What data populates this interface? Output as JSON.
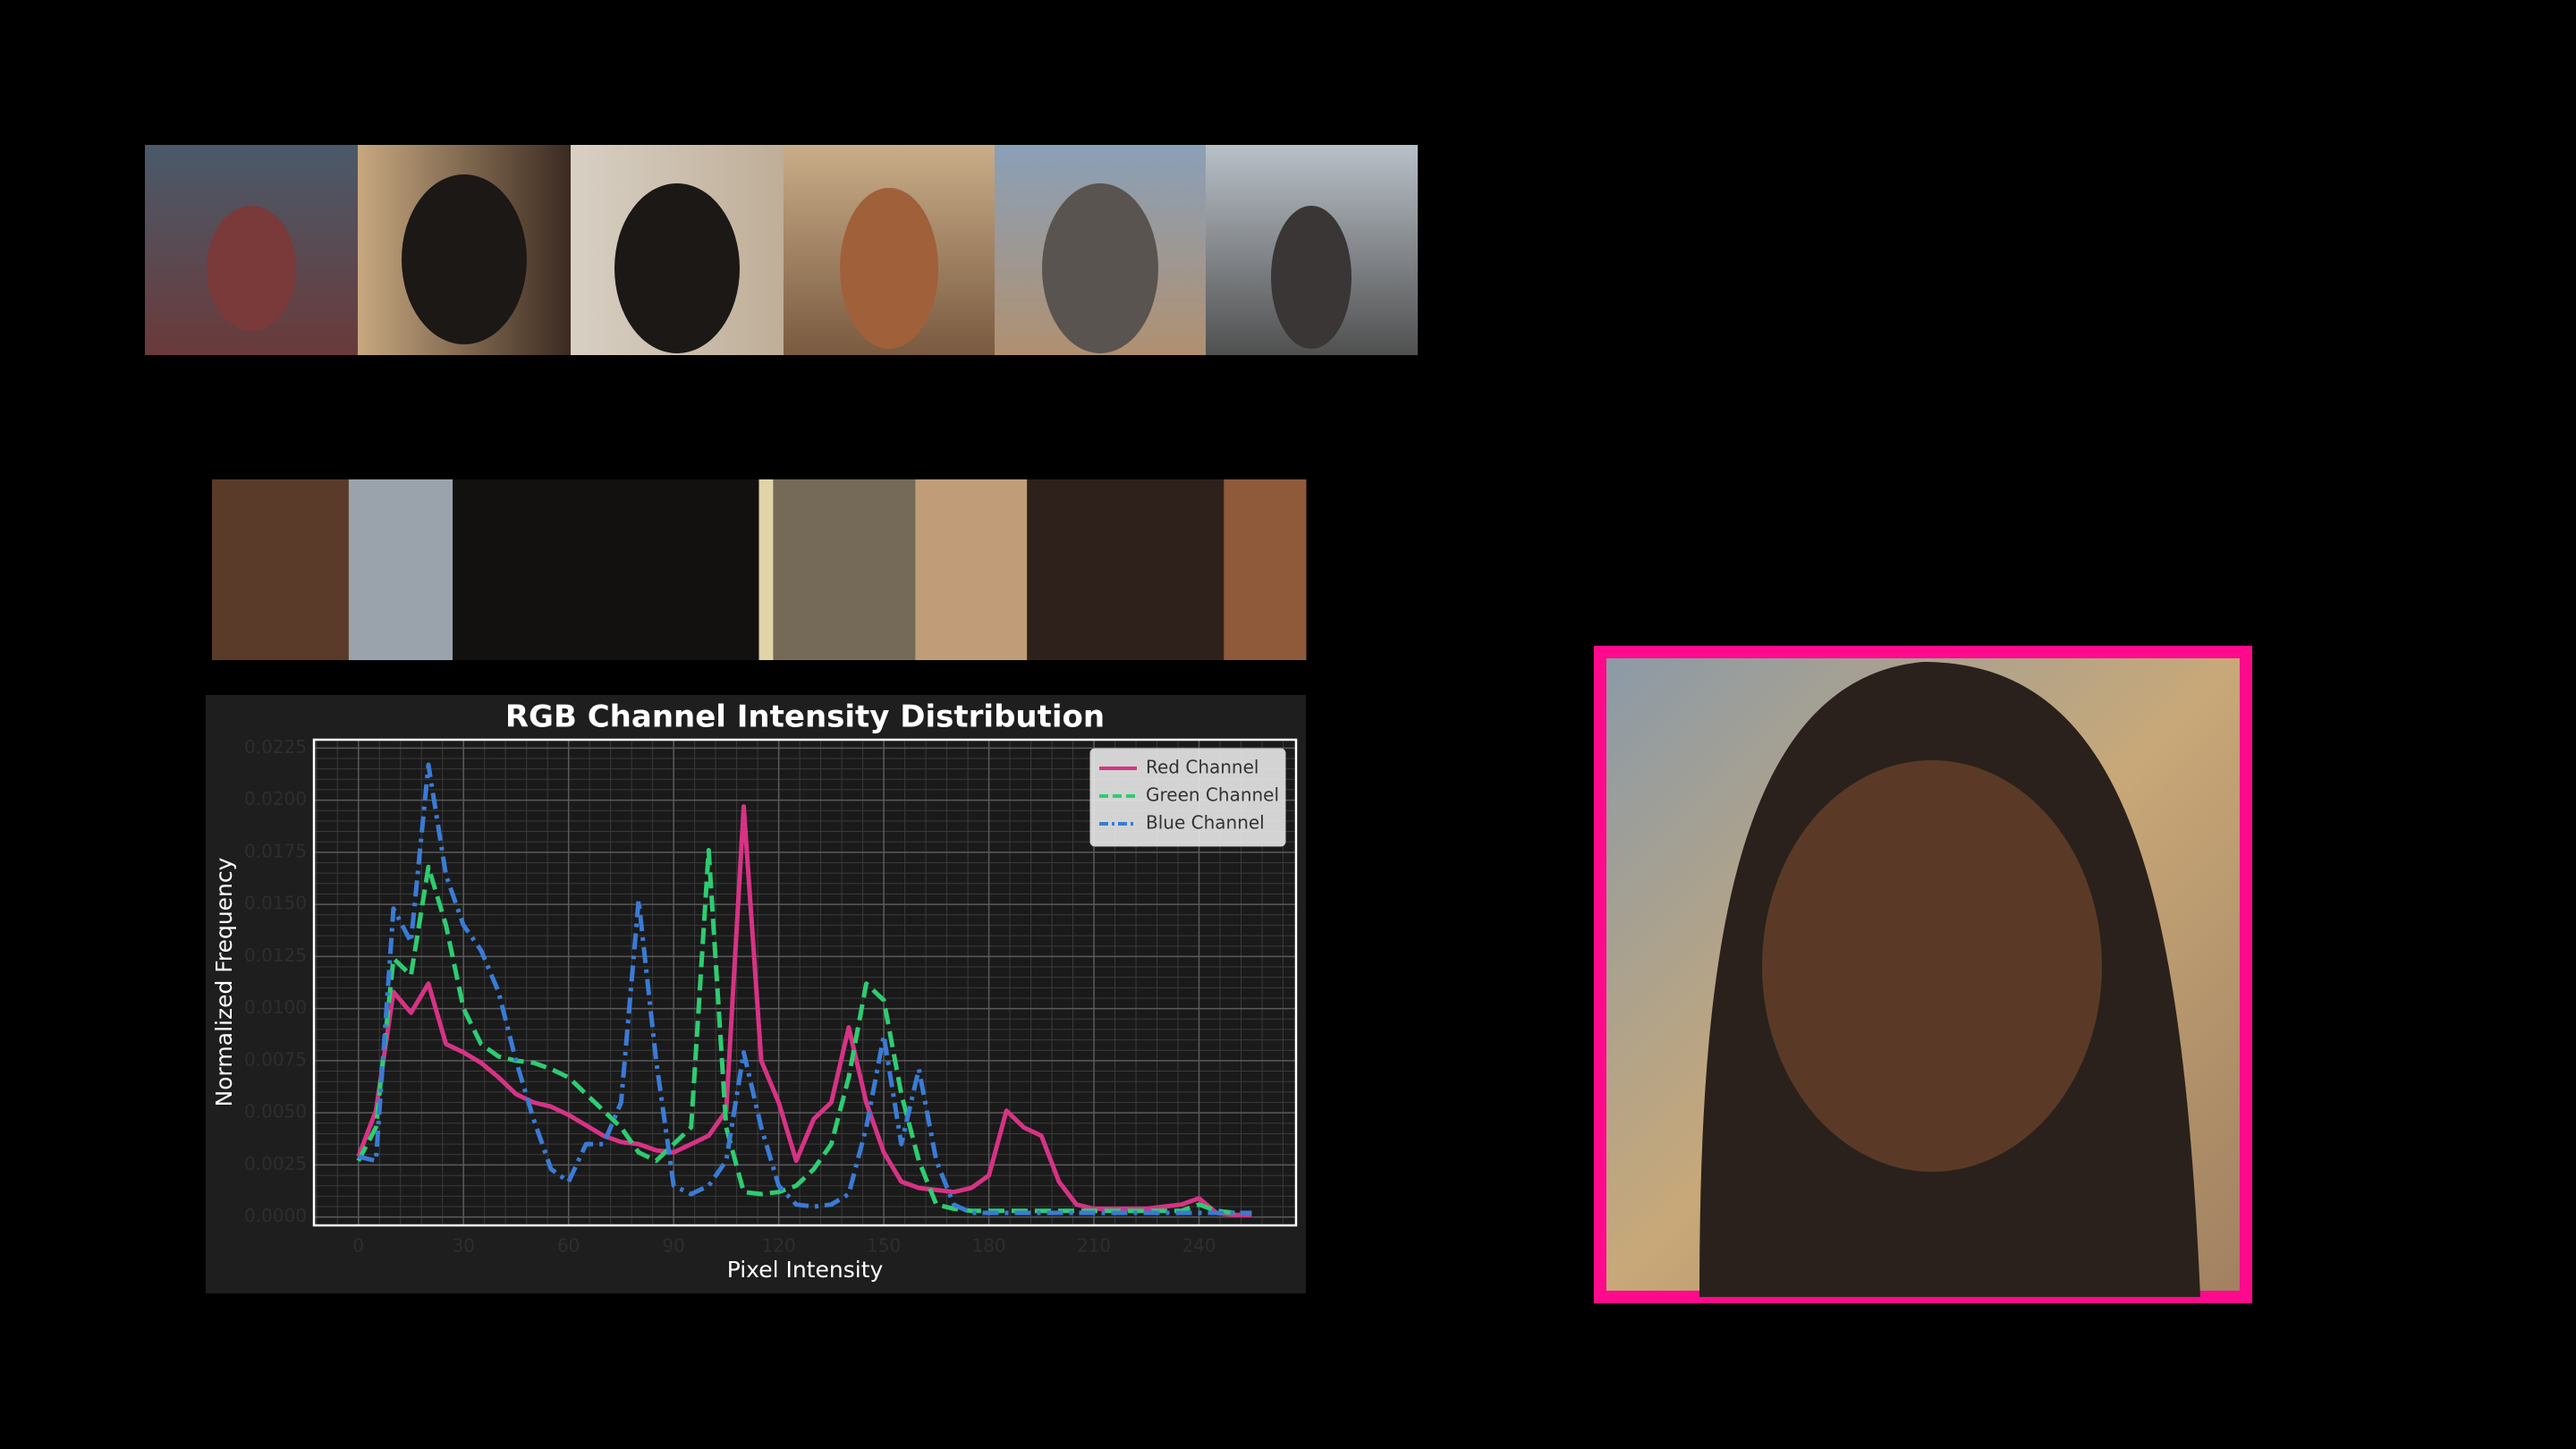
{
  "chart_data": {
    "type": "line",
    "title": "RGB Channel Intensity Distribution",
    "xlabel": "Pixel Intensity",
    "ylabel": "Normalized Frequency",
    "x": [
      0,
      5,
      10,
      15,
      20,
      25,
      30,
      35,
      40,
      45,
      50,
      55,
      60,
      65,
      70,
      75,
      80,
      85,
      90,
      95,
      100,
      105,
      110,
      115,
      120,
      125,
      130,
      135,
      140,
      145,
      150,
      155,
      160,
      165,
      170,
      175,
      180,
      185,
      190,
      195,
      200,
      205,
      210,
      215,
      220,
      225,
      230,
      235,
      240,
      245,
      250,
      255
    ],
    "series": [
      {
        "name": "Red Channel",
        "color": "#d63384",
        "dash": "solid",
        "values": [
          0.0029,
          0.0051,
          0.0108,
          0.0098,
          0.0112,
          0.0083,
          0.0079,
          0.0074,
          0.0067,
          0.0059,
          0.0055,
          0.0053,
          0.0049,
          0.0044,
          0.0039,
          0.0036,
          0.0035,
          0.0032,
          0.0031,
          0.0035,
          0.0039,
          0.0051,
          0.0197,
          0.0075,
          0.0055,
          0.0027,
          0.0047,
          0.0055,
          0.0091,
          0.0055,
          0.0031,
          0.0017,
          0.0014,
          0.0013,
          0.0012,
          0.0014,
          0.002,
          0.0051,
          0.0043,
          0.0039,
          0.0017,
          0.0006,
          0.0004,
          0.0004,
          0.0004,
          0.0004,
          0.0005,
          0.0006,
          0.0009,
          0.0002,
          0.0001,
          0.0001
        ]
      },
      {
        "name": "Green Channel",
        "color": "#2ecc71",
        "dash": "dashed",
        "values": [
          0.0027,
          0.0043,
          0.0124,
          0.0116,
          0.0168,
          0.014,
          0.01,
          0.0083,
          0.0077,
          0.0075,
          0.0074,
          0.0071,
          0.0067,
          0.0059,
          0.0051,
          0.0043,
          0.0031,
          0.0027,
          0.0035,
          0.0043,
          0.0176,
          0.0043,
          0.0012,
          0.0011,
          0.0012,
          0.0015,
          0.0023,
          0.0035,
          0.0067,
          0.0112,
          0.0104,
          0.0059,
          0.0027,
          0.0006,
          0.0004,
          0.0003,
          0.0003,
          0.0003,
          0.0003,
          0.0003,
          0.0003,
          0.0003,
          0.0003,
          0.0003,
          0.0003,
          0.0003,
          0.0003,
          0.0003,
          0.0006,
          0.0003,
          0.0002,
          0.0002
        ]
      },
      {
        "name": "Blue Channel",
        "color": "#3a7bd5",
        "dash": "dashdot",
        "values": [
          0.0029,
          0.0027,
          0.0148,
          0.0132,
          0.0217,
          0.0164,
          0.014,
          0.0128,
          0.0108,
          0.0075,
          0.0047,
          0.0023,
          0.0017,
          0.0035,
          0.0035,
          0.0055,
          0.0152,
          0.0075,
          0.0015,
          0.0011,
          0.0015,
          0.0027,
          0.0079,
          0.0043,
          0.0015,
          0.0006,
          0.0005,
          0.0006,
          0.0011,
          0.0043,
          0.0087,
          0.0035,
          0.0071,
          0.0027,
          0.0006,
          0.0002,
          0.0002,
          0.0002,
          0.0002,
          0.0002,
          0.0002,
          0.0002,
          0.0002,
          0.0002,
          0.0002,
          0.0002,
          0.0002,
          0.0002,
          0.0002,
          0.0002,
          0.0002,
          0.0002
        ]
      }
    ],
    "xlim": [
      -12.7,
      267.7
    ],
    "xticks": [
      0,
      30,
      60,
      90,
      120,
      150,
      180,
      210,
      240
    ],
    "ylim": [
      -0.0004,
      0.0229
    ],
    "yticks": [
      {
        "value": 0,
        "label": "0.0000"
      },
      {
        "value": 0.0025,
        "label": "0.0025"
      },
      {
        "value": 0.005,
        "label": "0.0050"
      },
      {
        "value": 0.0075,
        "label": "0.0075"
      },
      {
        "value": 0.01,
        "label": "0.0100"
      },
      {
        "value": 0.0125,
        "label": "0.0125"
      },
      {
        "value": 0.015,
        "label": "0.0150"
      },
      {
        "value": 0.0175,
        "label": "0.0175"
      },
      {
        "value": 0.02,
        "label": "0.0200"
      },
      {
        "value": 0.0225,
        "label": "0.0225"
      }
    ],
    "grid": true,
    "legend": "upper right"
  },
  "palette": {
    "colors": [
      "#5a3a28",
      "#9aa3ab",
      "#121110",
      "#e0d4a8",
      "#756a58",
      "#c09d78",
      "#2e211b",
      "#8e5a3a"
    ],
    "shares": [
      12.5,
      9.5,
      28,
      1.3,
      13,
      10.2,
      18,
      7.5
    ]
  }
}
